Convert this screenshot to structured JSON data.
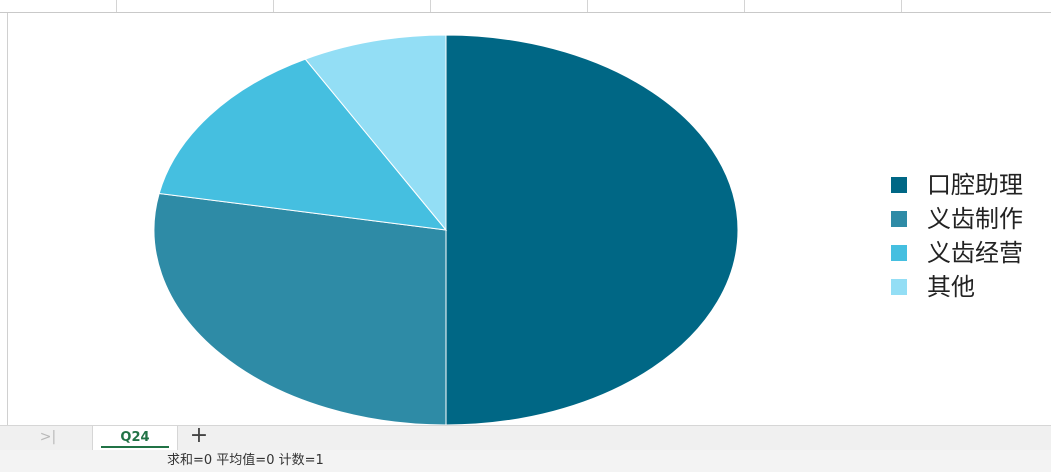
{
  "chart_data": {
    "type": "pie",
    "slices": [
      {
        "label": "口腔助理",
        "value": 50,
        "color": "#006785"
      },
      {
        "label": "义齿制作",
        "value": 28,
        "color": "#2e8ba6"
      },
      {
        "label": "义齿经营",
        "value": 14,
        "color": "#45bfe0"
      },
      {
        "label": "其他",
        "value": 8,
        "color": "#93def5"
      }
    ],
    "title": "",
    "legend_placement": "right",
    "start_angle": "12 o'clock",
    "direction": "clockwise"
  },
  "legend": {
    "items": [
      {
        "label": "口腔助理",
        "color": "#006785"
      },
      {
        "label": "义齿制作",
        "color": "#2e8ba6"
      },
      {
        "label": "义齿经营",
        "color": "#45bfe0"
      },
      {
        "label": "其他",
        "color": "#93def5"
      }
    ]
  },
  "tabbar": {
    "nav_last_symbol": ">|",
    "active_sheet": "Q24",
    "add_symbol": "+"
  },
  "statusbar": {
    "summary": "求和=0  平均值=0  计数=1"
  }
}
